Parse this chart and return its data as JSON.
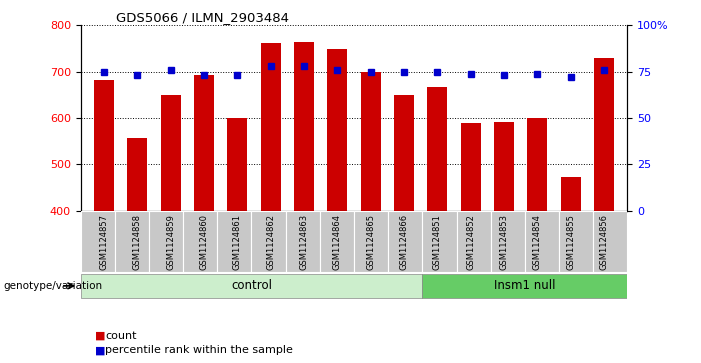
{
  "title": "GDS5066 / ILMN_2903484",
  "categories": [
    "GSM1124857",
    "GSM1124858",
    "GSM1124859",
    "GSM1124860",
    "GSM1124861",
    "GSM1124862",
    "GSM1124863",
    "GSM1124864",
    "GSM1124865",
    "GSM1124866",
    "GSM1124851",
    "GSM1124852",
    "GSM1124853",
    "GSM1124854",
    "GSM1124855",
    "GSM1124856"
  ],
  "counts": [
    683,
    557,
    650,
    693,
    601,
    762,
    765,
    748,
    700,
    650,
    668,
    590,
    592,
    600,
    473,
    730
  ],
  "percentiles": [
    75,
    73,
    76,
    73,
    73,
    78,
    78,
    76,
    75,
    75,
    75,
    74,
    73,
    74,
    72,
    76
  ],
  "control_indices": [
    0,
    1,
    2,
    3,
    4,
    5,
    6,
    7,
    8,
    9
  ],
  "insm1_indices": [
    10,
    11,
    12,
    13,
    14,
    15
  ],
  "ylim_left": [
    400,
    800
  ],
  "ylim_right": [
    0,
    100
  ],
  "bar_color": "#cc0000",
  "dot_color": "#0000cc",
  "control_bg": "#cceecc",
  "insm1_bg": "#66cc66",
  "label_bg": "#c8c8c8",
  "grid_color": "#000000",
  "legend_count_label": "count",
  "legend_pct_label": "percentile rank within the sample",
  "group_label": "genotype/variation"
}
